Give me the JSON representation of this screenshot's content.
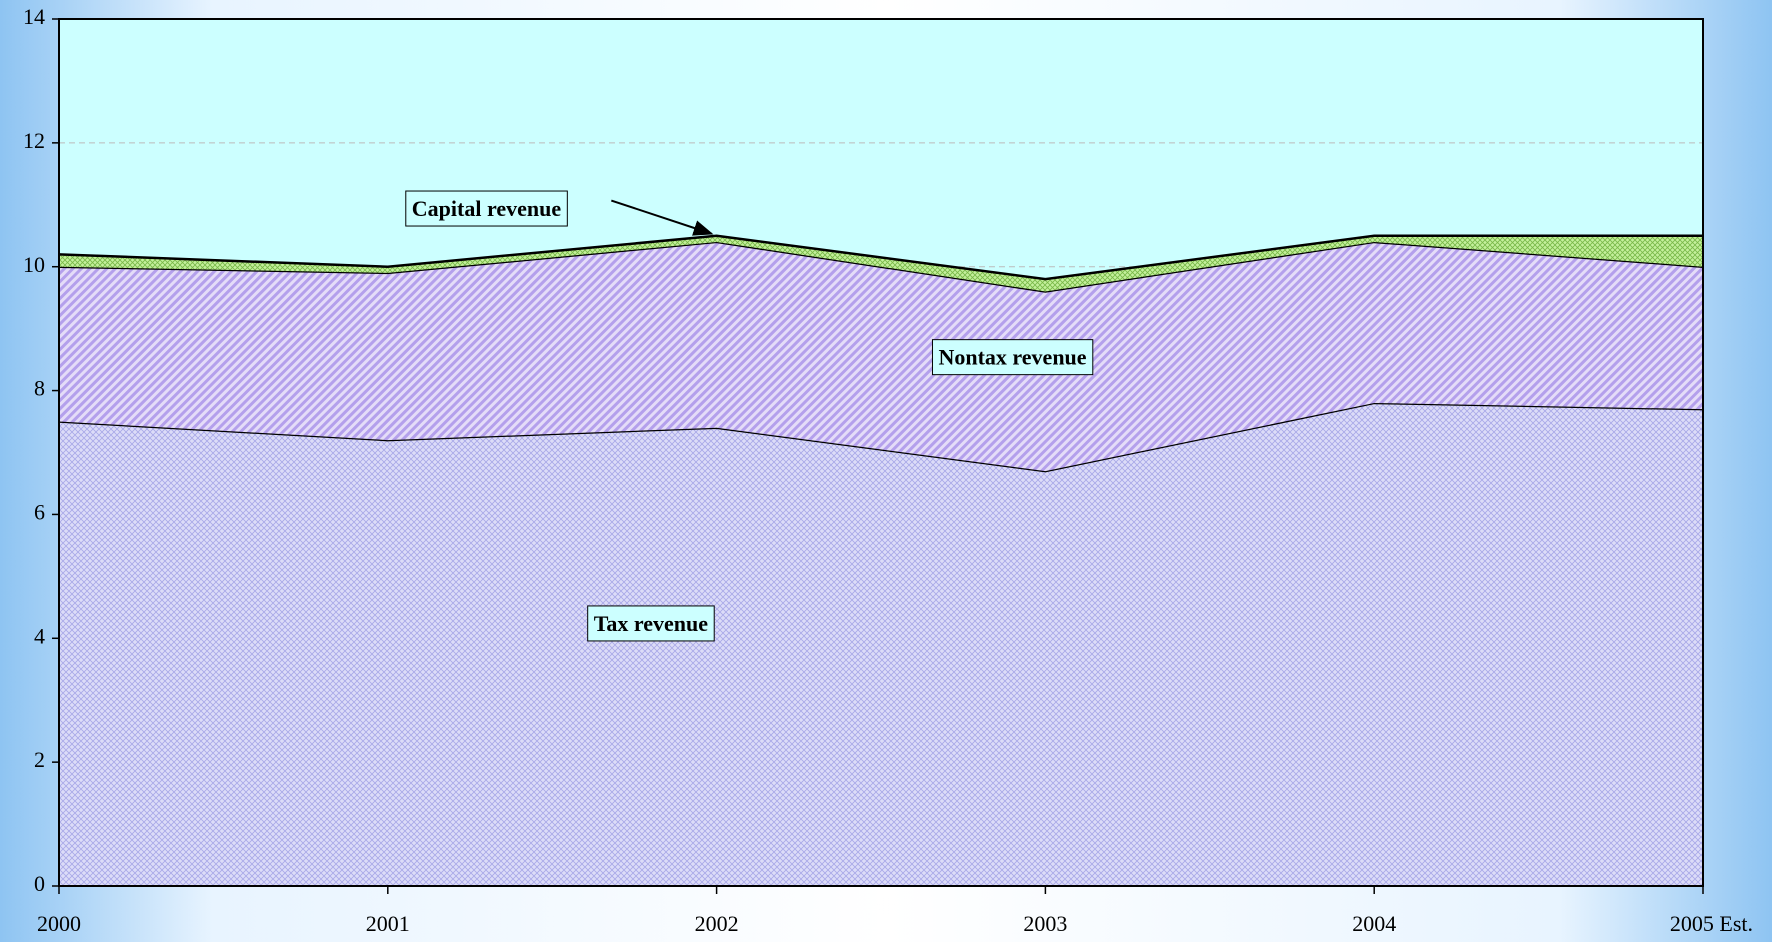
{
  "chart_data": {
    "type": "stacked_area",
    "categories": [
      "2000",
      "2001",
      "2002",
      "2003",
      "2004",
      "2005 Est."
    ],
    "series": [
      {
        "name": "Tax revenue",
        "color": "#c8c8f4",
        "values": [
          7.5,
          7.2,
          7.4,
          6.7,
          7.8,
          7.7
        ]
      },
      {
        "name": "Nontax revenue",
        "color": "#c6b4f0",
        "values": [
          2.5,
          2.7,
          3.0,
          2.9,
          2.6,
          2.3
        ]
      },
      {
        "name": "Capital revenue",
        "color": "#a8e070",
        "values": [
          0.2,
          0.1,
          0.1,
          0.2,
          0.1,
          0.5
        ]
      }
    ],
    "ylim": [
      0,
      14
    ],
    "yticks": [
      0,
      2,
      4,
      6,
      8,
      10,
      12,
      14
    ],
    "grid": true
  }
}
